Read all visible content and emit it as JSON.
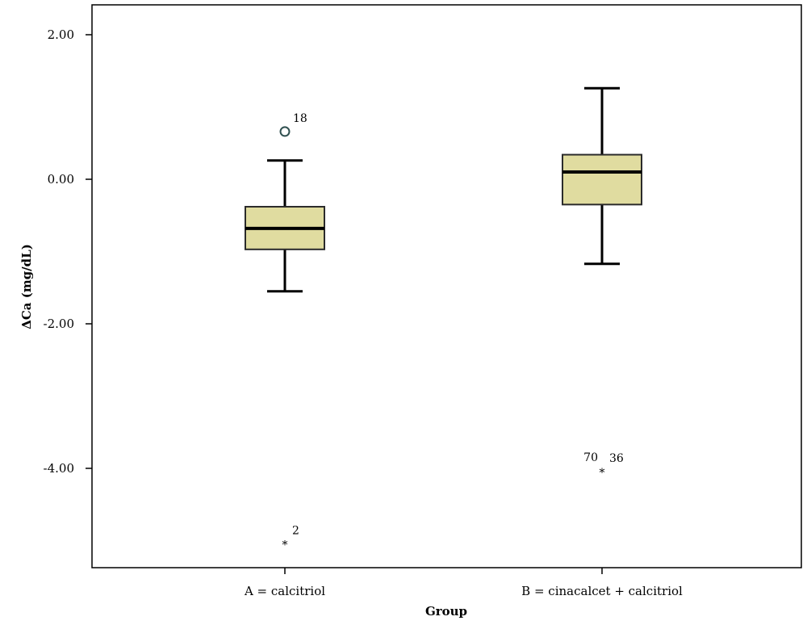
{
  "chart_data": {
    "type": "boxplot",
    "xlabel": "Group",
    "ylabel": "ΔCa (mg/dL)",
    "ylim": [
      -5.5,
      2.4
    ],
    "yticks": [
      2.0,
      0.0,
      -2.0,
      -4.0
    ],
    "ytick_labels": [
      "2.00",
      "0.00",
      "-2.00",
      "-4.00"
    ],
    "grid": false,
    "box_color": "#e0dca0",
    "categories": [
      "A = calcitriol",
      "B = cinacalcet + calcitriol"
    ],
    "boxes": [
      {
        "category": "A = calcitriol",
        "whisker_low": -1.55,
        "q1": -0.97,
        "median": -0.68,
        "q3": -0.38,
        "whisker_high": 0.26,
        "outliers": [
          {
            "value": 0.66,
            "kind": "circle",
            "label": "18"
          },
          {
            "value": -5.0,
            "kind": "star",
            "label": "2"
          }
        ]
      },
      {
        "category": "B = cinacalcet + calcitriol",
        "whisker_low": -1.17,
        "q1": -0.35,
        "median": 0.1,
        "q3": 0.34,
        "whisker_high": 1.26,
        "outliers": [
          {
            "value": -4.0,
            "kind": "star",
            "label": "70"
          },
          {
            "value": -4.0,
            "kind": "star",
            "label": "36"
          }
        ]
      }
    ]
  }
}
